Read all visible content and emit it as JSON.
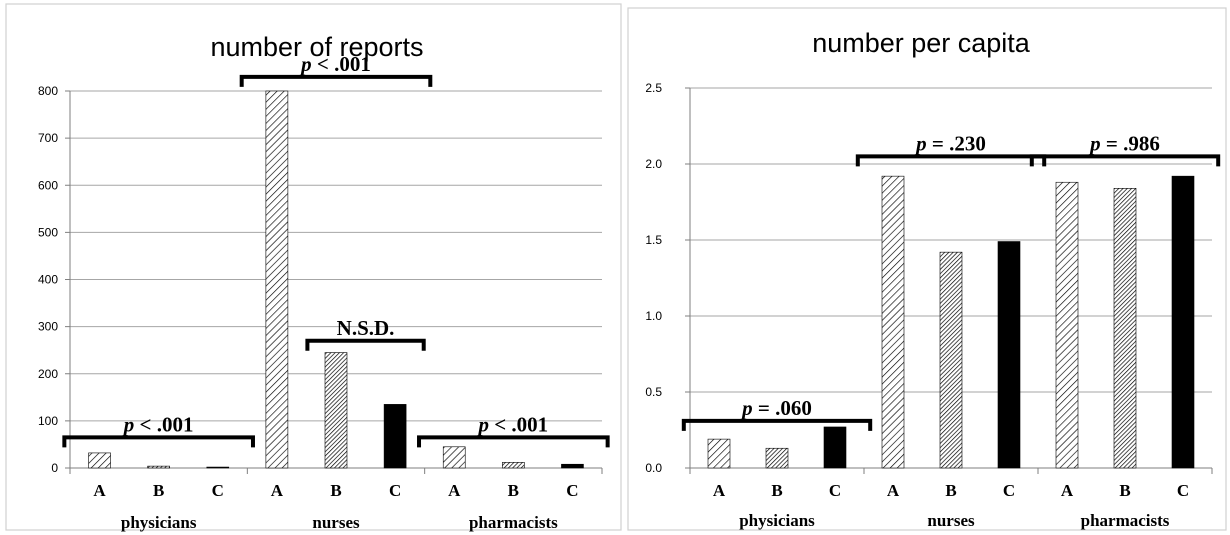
{
  "colors": {
    "A": "hatch-diagonal",
    "B": "hatch-fine",
    "C": "#000000"
  },
  "chart_data": [
    {
      "type": "bar",
      "title": "number of reports",
      "ylim": [
        0,
        800
      ],
      "yticks": [
        "0",
        "100",
        "200",
        "300",
        "400",
        "500",
        "600",
        "700",
        "800"
      ],
      "grid": true,
      "legend": "none",
      "groups": [
        {
          "label": "physicians",
          "categories": [
            "A",
            "B",
            "C"
          ],
          "values": [
            32,
            4,
            2
          ]
        },
        {
          "label": "nurses",
          "categories": [
            "A",
            "B",
            "C"
          ],
          "values": [
            800,
            245,
            135
          ]
        },
        {
          "label": "pharmacists",
          "categories": [
            "A",
            "B",
            "C"
          ],
          "values": [
            45,
            12,
            8
          ]
        }
      ],
      "annotations": [
        {
          "text": "p < .001",
          "group": "physicians",
          "value": 65
        },
        {
          "text": "p <  .001",
          "group": "nurses",
          "value": 830
        },
        {
          "text": "N.S.D.",
          "group": "nurses-BC",
          "value": 270
        },
        {
          "text": "p < .001",
          "group": "pharmacists",
          "value": 65
        }
      ]
    },
    {
      "type": "bar",
      "title": "number per capita",
      "ylim": [
        0,
        2.5
      ],
      "yticks": [
        "0.0",
        "0.5",
        "1.0",
        "1.5",
        "2.0",
        "2.5"
      ],
      "grid": true,
      "legend": "none",
      "groups": [
        {
          "label": "physicians",
          "categories": [
            "A",
            "B",
            "C"
          ],
          "values": [
            0.19,
            0.13,
            0.27
          ]
        },
        {
          "label": "nurses",
          "categories": [
            "A",
            "B",
            "C"
          ],
          "values": [
            1.92,
            1.42,
            1.49
          ]
        },
        {
          "label": "pharmacists",
          "categories": [
            "A",
            "B",
            "C"
          ],
          "values": [
            1.88,
            1.84,
            1.92
          ]
        }
      ],
      "annotations": [
        {
          "text": "p = .060",
          "group": "physicians",
          "value": 0.31
        },
        {
          "text": "p = .230",
          "group": "nurses",
          "value": 2.05
        },
        {
          "text": "p = .986",
          "group": "pharmacists",
          "value": 2.05
        }
      ]
    }
  ]
}
